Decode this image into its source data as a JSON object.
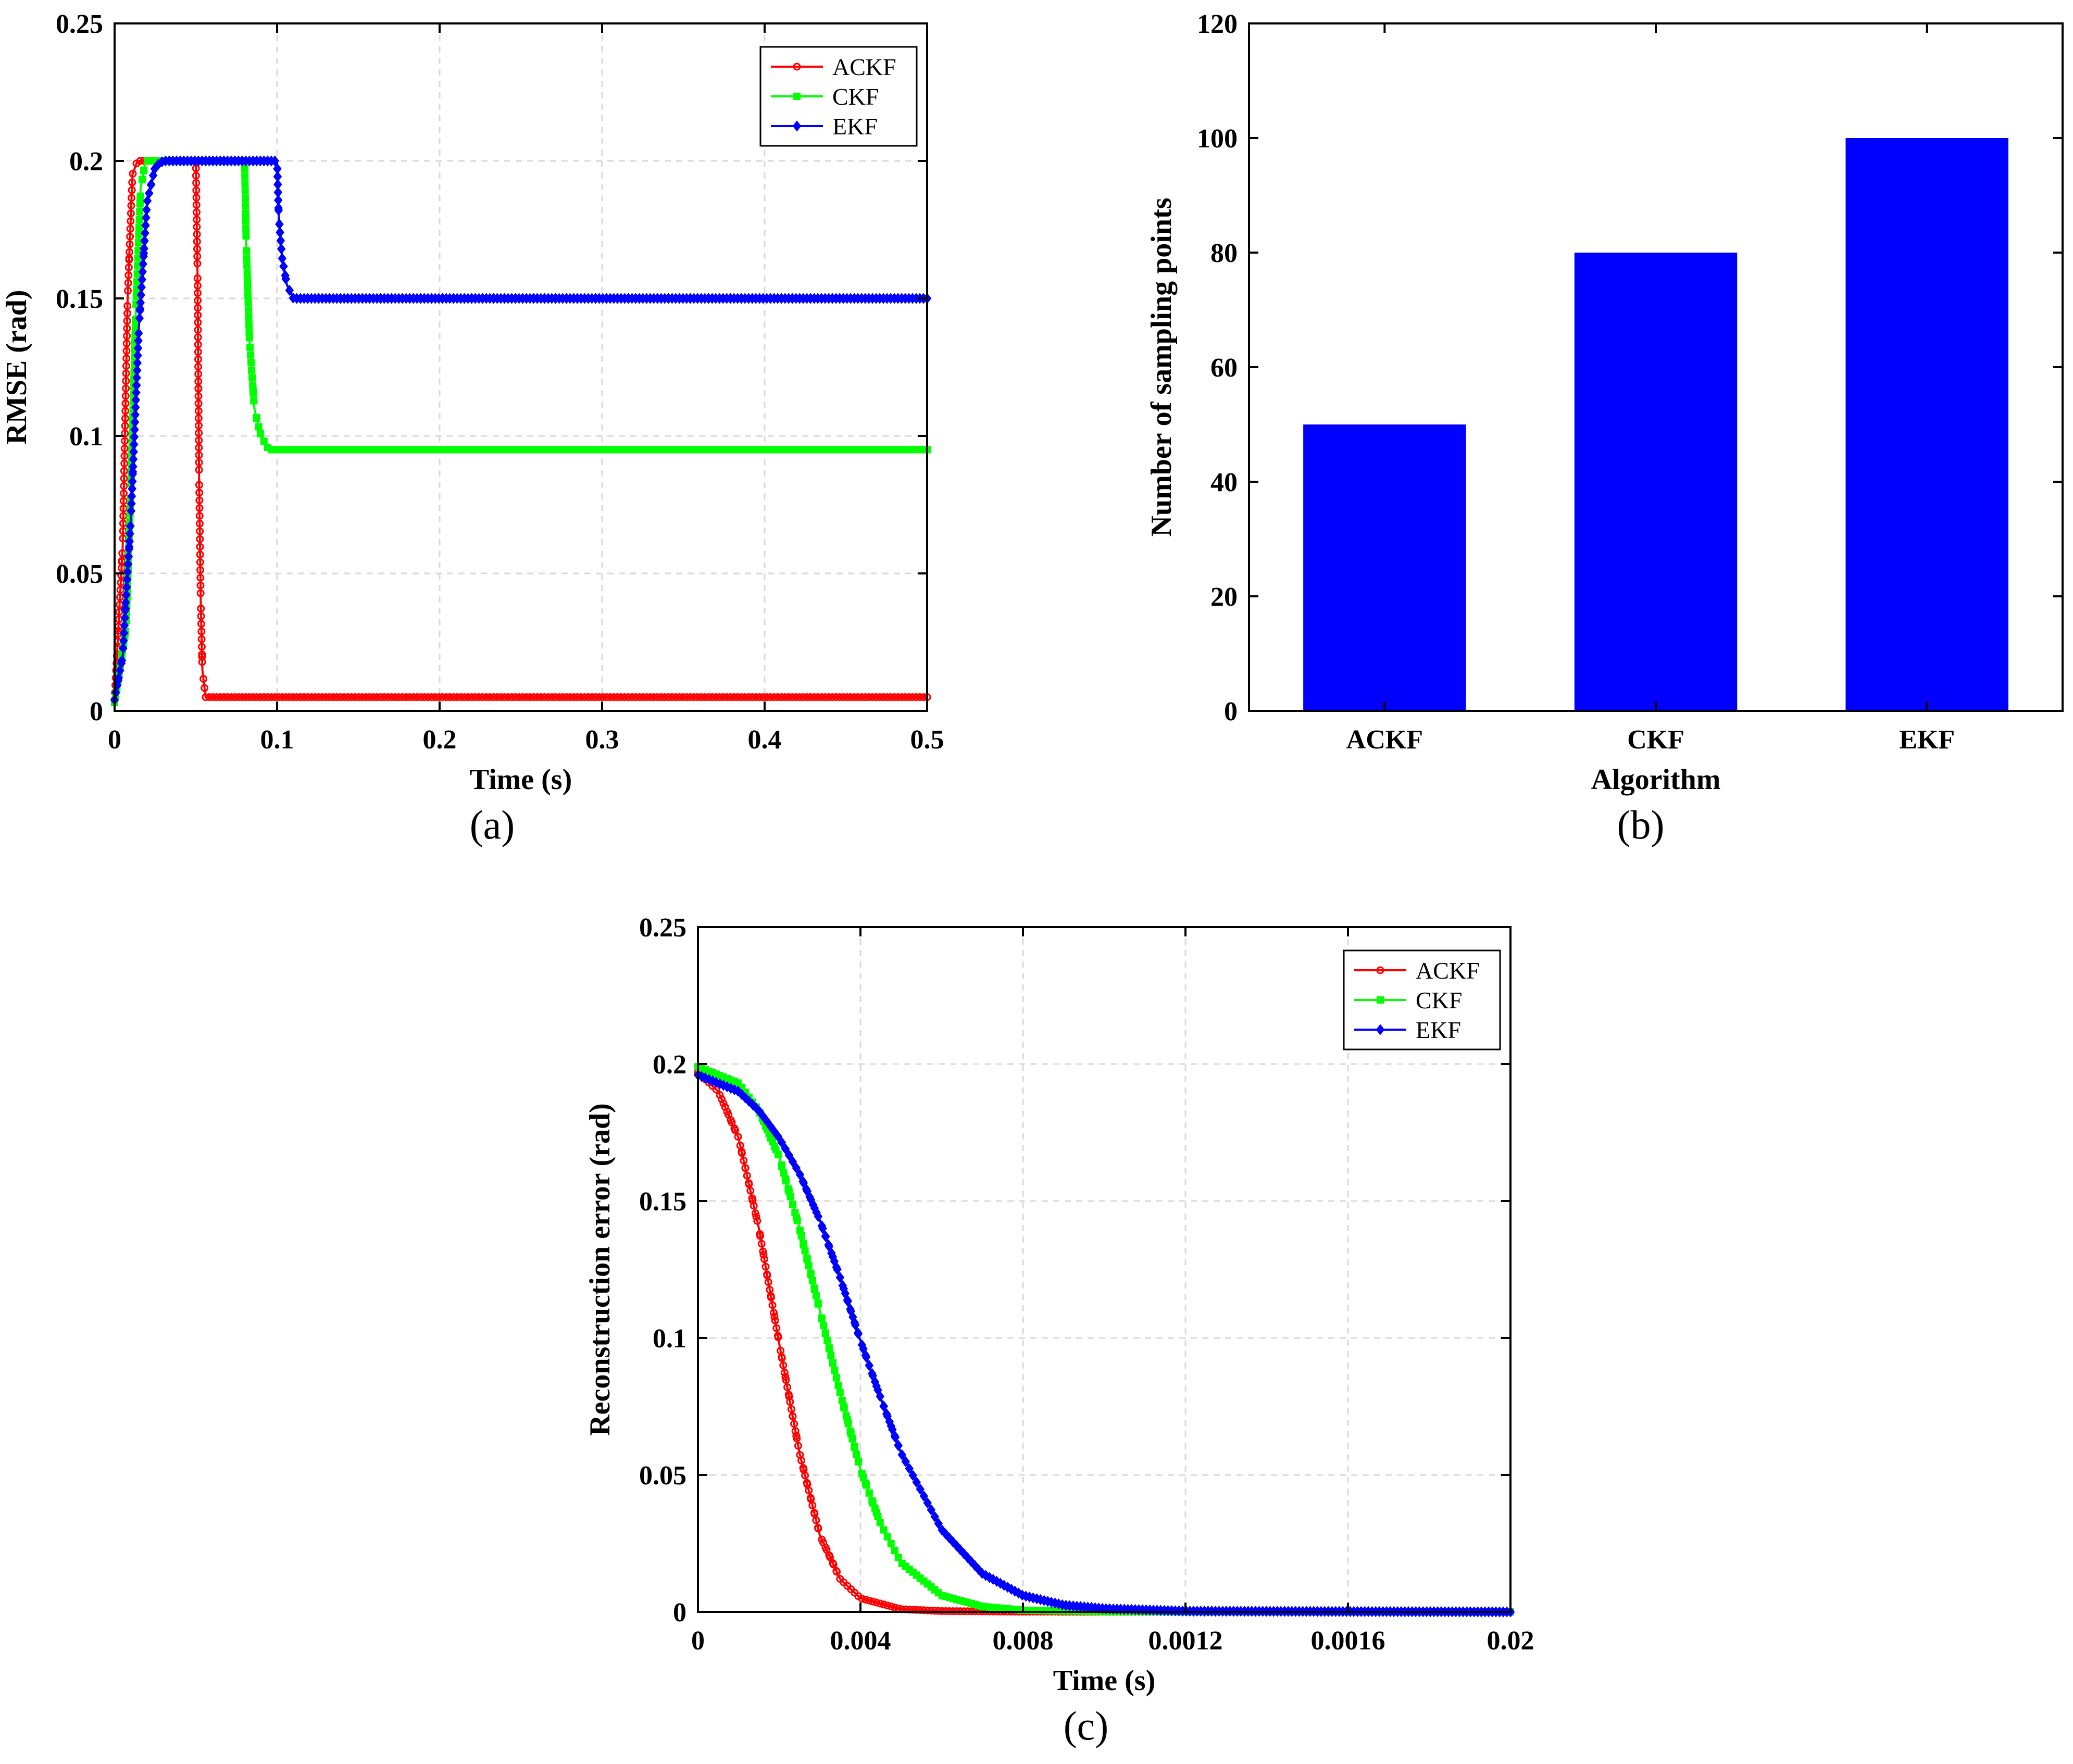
{
  "chart_data": [
    {
      "panel": "a",
      "type": "line",
      "caption": "(a)",
      "xlabel": "Time (s)",
      "ylabel": "RMSE (rad)",
      "xlim": [
        0,
        0.5
      ],
      "ylim": [
        0,
        0.25
      ],
      "xticks": [
        "0",
        "0.1",
        "0.2",
        "0.3",
        "0.4",
        "0.5"
      ],
      "yticks": [
        "0",
        "0.05",
        "0.1",
        "0.15",
        "0.2",
        "0.25"
      ],
      "grid": true,
      "legend": "top-right",
      "series": [
        {
          "name": "ACKF",
          "color": "#ff0000",
          "marker": "circle",
          "x": [
            0,
            0.005,
            0.008,
            0.011,
            0.014,
            0.05,
            0.051,
            0.052,
            0.053,
            0.054,
            0.056,
            0.5
          ],
          "y": [
            0.004,
            0.06,
            0.15,
            0.195,
            0.2,
            0.2,
            0.16,
            0.085,
            0.04,
            0.015,
            0.005,
            0.005
          ]
        },
        {
          "name": "CKF",
          "color": "#00ff00",
          "marker": "square",
          "x": [
            0,
            0.007,
            0.01,
            0.013,
            0.016,
            0.019,
            0.08,
            0.081,
            0.083,
            0.086,
            0.09,
            0.095,
            0.5
          ],
          "y": [
            0.003,
            0.03,
            0.08,
            0.145,
            0.19,
            0.2,
            0.2,
            0.17,
            0.135,
            0.11,
            0.1,
            0.095,
            0.095
          ]
        },
        {
          "name": "EKF",
          "color": "#0000ff",
          "marker": "diamond",
          "x": [
            0,
            0.005,
            0.01,
            0.015,
            0.02,
            0.025,
            0.03,
            0.1,
            0.101,
            0.103,
            0.106,
            0.11,
            0.5
          ],
          "y": [
            0.004,
            0.02,
            0.07,
            0.14,
            0.185,
            0.198,
            0.2,
            0.2,
            0.18,
            0.165,
            0.155,
            0.15,
            0.15
          ]
        }
      ]
    },
    {
      "panel": "b",
      "type": "bar",
      "caption": "(b)",
      "xlabel": "Algorithm",
      "ylabel": "Number of sampling points",
      "categories": [
        "ACKF",
        "CKF",
        "EKF"
      ],
      "values": [
        50,
        80,
        100
      ],
      "color": "#0000ff",
      "ylim": [
        0,
        120
      ],
      "yticks": [
        "0",
        "20",
        "40",
        "60",
        "80",
        "100",
        "120"
      ],
      "grid": false
    },
    {
      "panel": "c",
      "type": "line",
      "caption": "(c)",
      "xlabel": "Time (s)",
      "ylabel": "Reconstruction error (rad)",
      "xlim": [
        0,
        0.02
      ],
      "ylim": [
        0,
        0.25
      ],
      "xticks": [
        "0",
        "0.004",
        "0.008",
        "0.0012",
        "0.0016",
        "0.02"
      ],
      "yticks": [
        "0",
        "0.05",
        "0.1",
        "0.15",
        "0.2",
        "0.25"
      ],
      "grid": true,
      "legend": "top-right",
      "series": [
        {
          "name": "ACKF",
          "color": "#ff0000",
          "marker": "circle",
          "x": [
            0,
            0.0005,
            0.001,
            0.0015,
            0.002,
            0.0025,
            0.003,
            0.0035,
            0.004,
            0.005,
            0.006,
            0.008,
            0.02
          ],
          "y": [
            0.197,
            0.19,
            0.173,
            0.14,
            0.098,
            0.058,
            0.028,
            0.012,
            0.005,
            0.001,
            0.0003,
            0.0001,
            0
          ]
        },
        {
          "name": "CKF",
          "color": "#00ff00",
          "marker": "square",
          "x": [
            0,
            0.001,
            0.0015,
            0.002,
            0.0025,
            0.003,
            0.0035,
            0.004,
            0.0045,
            0.005,
            0.006,
            0.007,
            0.008,
            0.01,
            0.02
          ],
          "y": [
            0.199,
            0.193,
            0.183,
            0.166,
            0.14,
            0.11,
            0.08,
            0.052,
            0.032,
            0.018,
            0.006,
            0.002,
            0.0006,
            0.0001,
            0
          ]
        },
        {
          "name": "EKF",
          "color": "#0000ff",
          "marker": "diamond",
          "x": [
            0,
            0.001,
            0.0015,
            0.002,
            0.0025,
            0.003,
            0.0035,
            0.004,
            0.0045,
            0.005,
            0.006,
            0.007,
            0.008,
            0.009,
            0.01,
            0.012,
            0.02
          ],
          "y": [
            0.196,
            0.19,
            0.183,
            0.173,
            0.16,
            0.143,
            0.122,
            0.099,
            0.078,
            0.058,
            0.03,
            0.014,
            0.006,
            0.0025,
            0.0012,
            0.0003,
            0
          ]
        }
      ]
    }
  ]
}
